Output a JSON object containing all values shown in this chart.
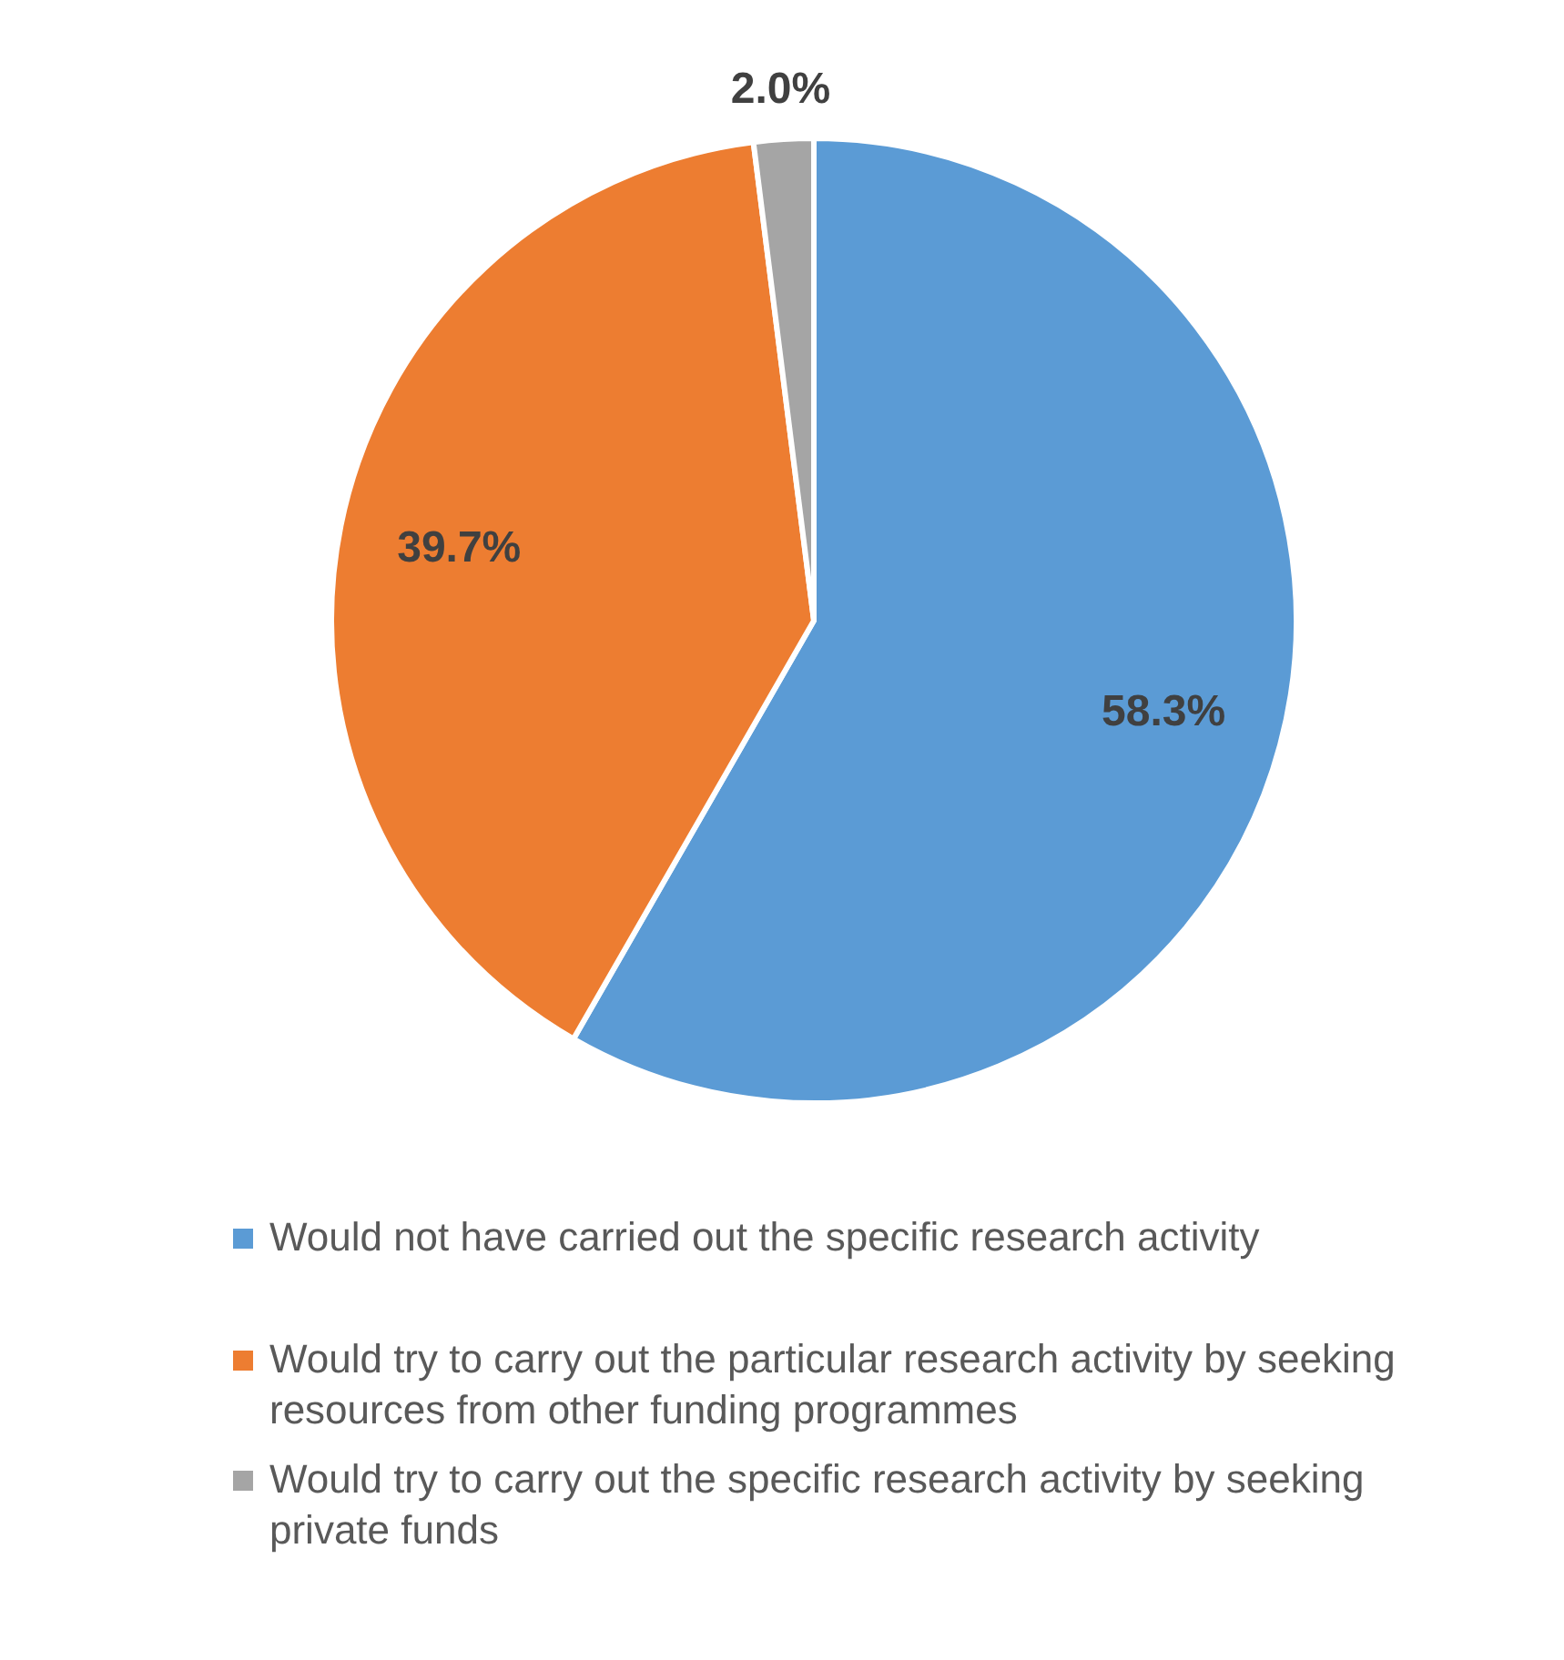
{
  "chart_data": {
    "type": "pie",
    "categories": [
      "Would not have carried out the specific research activity",
      "Would try to carry out the particular research activity by seeking resources from other funding programmes",
      "Would try to carry out the specific research activity by seeking private funds"
    ],
    "values": [
      58.3,
      39.7,
      2.0
    ],
    "colors": [
      "#5b9bd5",
      "#ed7d31",
      "#a5a5a5"
    ],
    "value_labels": [
      "58.3%",
      "39.7%",
      "2.0%"
    ],
    "legend": "bottom"
  }
}
